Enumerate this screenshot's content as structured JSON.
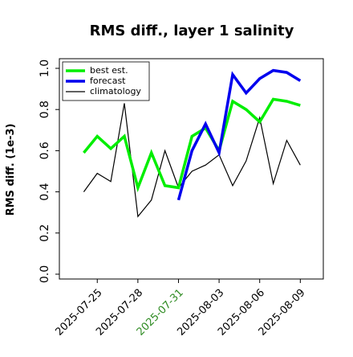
{
  "chart_data": {
    "type": "line",
    "title": "RMS diff., layer 1 salinity",
    "xlabel": "",
    "ylabel": "RMS diff. (1e-3)",
    "ylim": [
      0.0,
      1.0
    ],
    "y_ticks": [
      "0.0",
      "0.2",
      "0.4",
      "0.6",
      "0.8",
      "1.0"
    ],
    "y_tick_values": [
      0.0,
      0.2,
      0.4,
      0.6,
      0.8,
      1.0
    ],
    "x_ticks": [
      "2025-07-25",
      "2025-07-28",
      "2025-07-31",
      "2025-08-03",
      "2025-08-06",
      "2025-08-09"
    ],
    "x_tick_days": [
      0,
      3,
      6,
      9,
      12,
      15
    ],
    "highlight_tick": "2025-07-31",
    "highlight_color": "#2e8b22",
    "x_range_days": [
      -2.8,
      16.7
    ],
    "grid": false,
    "legend_position": "upper-left",
    "series": [
      {
        "name": "best est.",
        "color": "#00ee00",
        "days": [
          -1,
          0,
          1,
          2,
          3,
          4,
          5,
          6,
          7,
          8,
          9,
          10,
          11,
          12,
          13,
          14,
          15
        ],
        "values": [
          0.59,
          0.67,
          0.61,
          0.67,
          0.42,
          0.59,
          0.43,
          0.42,
          0.67,
          0.71,
          0.6,
          0.84,
          0.8,
          0.74,
          0.85,
          0.84,
          0.82
        ]
      },
      {
        "name": "forecast",
        "color": "#0000ee",
        "days": [
          6,
          7,
          8,
          9,
          10,
          11,
          12,
          13,
          14,
          15
        ],
        "values": [
          0.36,
          0.6,
          0.73,
          0.59,
          0.97,
          0.88,
          0.95,
          0.99,
          0.98,
          0.94
        ]
      },
      {
        "name": "climatology",
        "color": "#000000",
        "days": [
          -1,
          0,
          1,
          2,
          3,
          4,
          5,
          6,
          7,
          8,
          9,
          10,
          11,
          12,
          13,
          14,
          15
        ],
        "values": [
          0.4,
          0.49,
          0.45,
          0.83,
          0.28,
          0.36,
          0.6,
          0.42,
          0.5,
          0.53,
          0.58,
          0.43,
          0.55,
          0.76,
          0.44,
          0.65,
          0.53
        ]
      }
    ]
  }
}
